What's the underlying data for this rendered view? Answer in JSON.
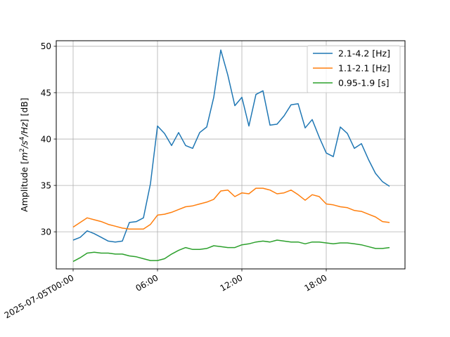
{
  "chart_data": {
    "type": "line",
    "ylabel": "Amplitude [m²/s⁴/Hz] [dB]",
    "ylabel_parts": {
      "prefix": "Amplitude [",
      "m": "m",
      "sup_2": "2",
      "mid": "/s",
      "sup_4": "4",
      "tail": "/Hz",
      "suffix": "] [dB]"
    },
    "x_start": "2025-07-05T00:00",
    "x_step_hours": 0.5,
    "x_ticks": [
      {
        "hour": 0,
        "label": "2025-07-05T00:00"
      },
      {
        "hour": 6,
        "label": "06:00"
      },
      {
        "hour": 12,
        "label": "12:00"
      },
      {
        "hour": 18,
        "label": "18:00"
      }
    ],
    "xlim_hours": [
      -1.2,
      23.6
    ],
    "ylim": [
      26.0,
      50.6
    ],
    "y_ticks": [
      30,
      35,
      40,
      45,
      50
    ],
    "grid": true,
    "legend_position": "top-right",
    "series": [
      {
        "name": "2.1-4.2 [Hz]",
        "color": "#1f77b4",
        "values": [
          29.1,
          29.4,
          30.1,
          29.8,
          29.4,
          29.0,
          28.9,
          29.0,
          31.0,
          31.1,
          31.5,
          35.2,
          41.4,
          40.6,
          39.3,
          40.7,
          39.3,
          39.0,
          40.7,
          41.3,
          44.5,
          49.6,
          46.9,
          43.6,
          44.5,
          41.4,
          44.8,
          45.2,
          41.5,
          41.6,
          42.5,
          43.7,
          43.8,
          41.2,
          42.1,
          40.2,
          38.5,
          38.1,
          41.3,
          40.6,
          39.0,
          39.5,
          37.8,
          36.3,
          35.4,
          34.9
        ]
      },
      {
        "name": "1.1-2.1 [Hz]",
        "color": "#ff7f0e",
        "values": [
          30.5,
          31.0,
          31.5,
          31.3,
          31.1,
          30.8,
          30.6,
          30.4,
          30.3,
          30.3,
          30.3,
          30.8,
          31.8,
          31.9,
          32.1,
          32.4,
          32.7,
          32.8,
          33.0,
          33.2,
          33.5,
          34.4,
          34.5,
          33.8,
          34.2,
          34.1,
          34.7,
          34.7,
          34.5,
          34.1,
          34.2,
          34.5,
          34.0,
          33.4,
          34.0,
          33.8,
          33.0,
          32.9,
          32.7,
          32.6,
          32.3,
          32.2,
          31.9,
          31.6,
          31.1,
          31.0
        ]
      },
      {
        "name": "0.95-1.9 [s]",
        "color": "#2ca02c",
        "values": [
          26.8,
          27.2,
          27.7,
          27.8,
          27.7,
          27.7,
          27.6,
          27.6,
          27.4,
          27.3,
          27.1,
          26.9,
          26.9,
          27.1,
          27.6,
          28.0,
          28.3,
          28.1,
          28.1,
          28.2,
          28.5,
          28.4,
          28.3,
          28.3,
          28.6,
          28.7,
          28.9,
          29.0,
          28.9,
          29.1,
          29.0,
          28.9,
          28.9,
          28.7,
          28.9,
          28.9,
          28.8,
          28.7,
          28.8,
          28.8,
          28.7,
          28.6,
          28.4,
          28.2,
          28.2,
          28.3
        ]
      }
    ]
  }
}
